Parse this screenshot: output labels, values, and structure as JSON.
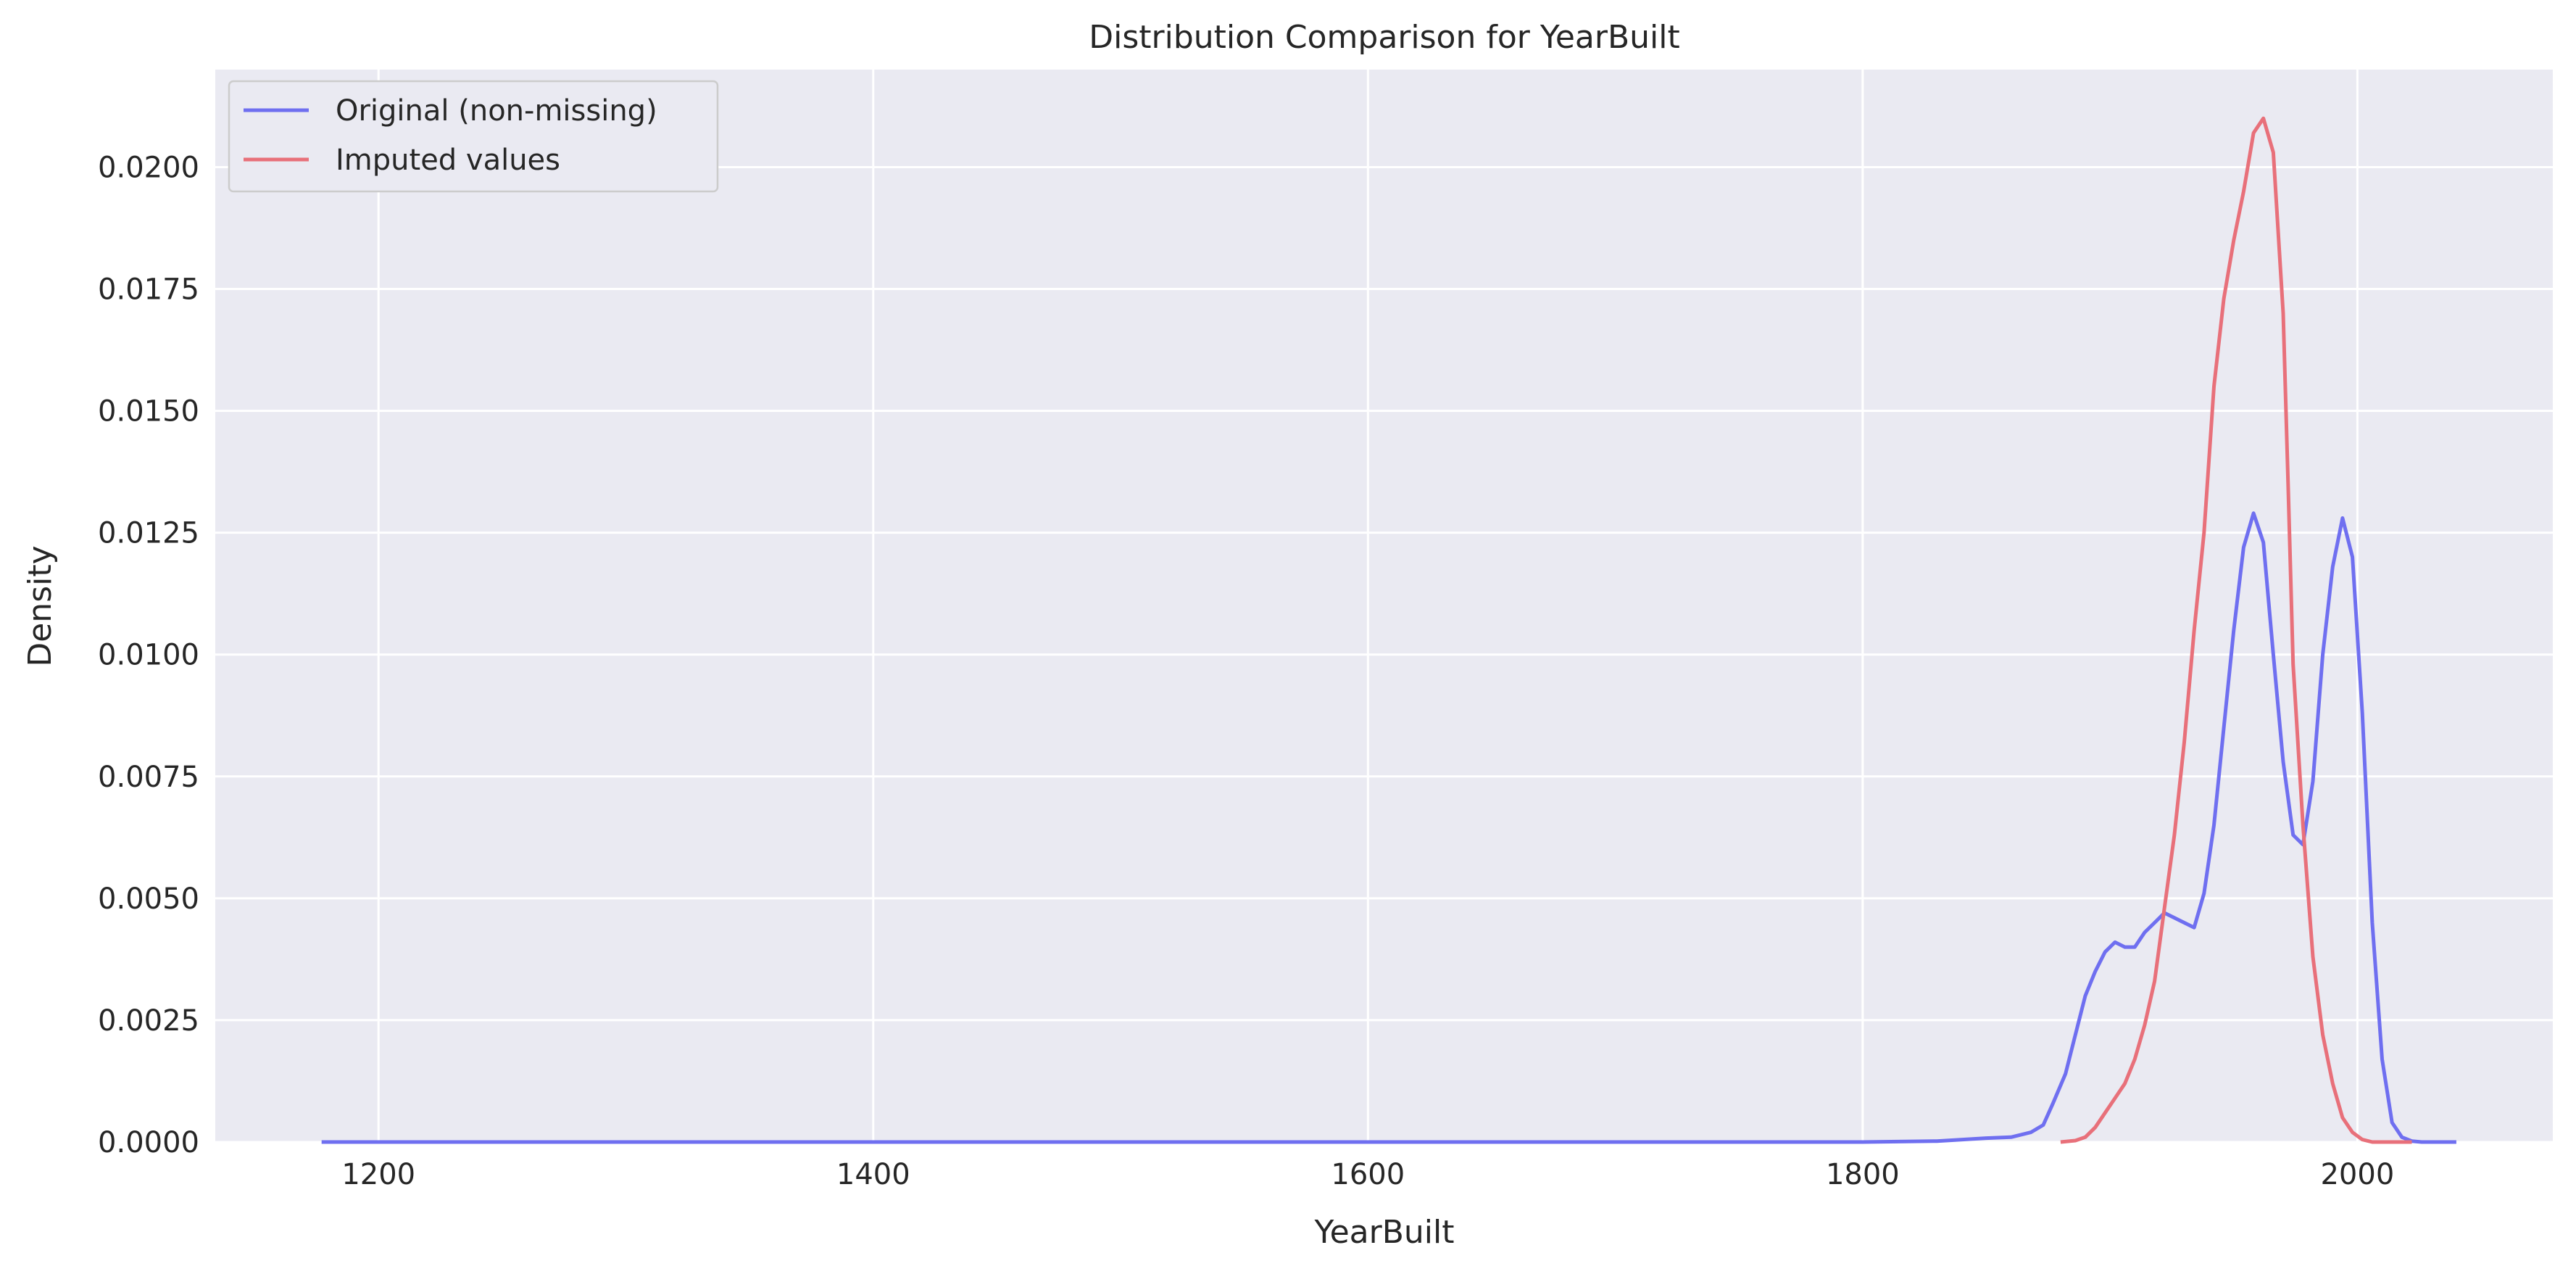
{
  "chart_data": {
    "type": "line",
    "title": "Distribution Comparison for YearBuilt",
    "xlabel": "YearBuilt",
    "ylabel": "Density",
    "xlim": [
      1134,
      2079
    ],
    "ylim": [
      0,
      0.022
    ],
    "xticks": [
      1200,
      1400,
      1600,
      1800,
      2000
    ],
    "yticks": [
      0.0,
      0.0025,
      0.005,
      0.0075,
      0.01,
      0.0125,
      0.015,
      0.0175,
      0.02
    ],
    "ytick_labels": [
      "0.0000",
      "0.0025",
      "0.0050",
      "0.0075",
      "0.0100",
      "0.0125",
      "0.0150",
      "0.0175",
      "0.0200"
    ],
    "xtick_labels": [
      "1200",
      "1400",
      "1600",
      "1800",
      "2000"
    ],
    "grid": true,
    "legend_position": "top-left",
    "background": "#eaeaf2",
    "series": [
      {
        "name": "Original (non-missing)",
        "color": "#6f6ff0",
        "x": [
          1177,
          1300,
          1500,
          1700,
          1800,
          1830,
          1850,
          1860,
          1868,
          1873,
          1877,
          1882,
          1886,
          1890,
          1894,
          1898,
          1902,
          1906,
          1910,
          1914,
          1918,
          1922,
          1926,
          1930,
          1934,
          1938,
          1942,
          1946,
          1950,
          1954,
          1958,
          1962,
          1966,
          1970,
          1974,
          1978,
          1982,
          1986,
          1990,
          1994,
          1998,
          2002,
          2006,
          2010,
          2014,
          2018,
          2022,
          2026,
          2030,
          2036,
          2040
        ],
        "y": [
          0.0,
          0.0,
          0.0,
          0.0,
          0.0,
          2e-05,
          8e-05,
          0.0001,
          0.0002,
          0.00035,
          0.0008,
          0.0014,
          0.0022,
          0.003,
          0.0035,
          0.0039,
          0.0041,
          0.004,
          0.004,
          0.0043,
          0.0045,
          0.0047,
          0.0046,
          0.0045,
          0.0044,
          0.0051,
          0.0065,
          0.0085,
          0.0105,
          0.0122,
          0.0129,
          0.0123,
          0.01,
          0.0078,
          0.0063,
          0.0061,
          0.0074,
          0.01,
          0.0118,
          0.0128,
          0.012,
          0.0088,
          0.0045,
          0.0017,
          0.0004,
          0.0001,
          2e-05,
          0.0,
          0.0,
          0.0,
          0.0
        ]
      },
      {
        "name": "Imputed values",
        "color": "#e8707a",
        "x": [
          1880,
          1886,
          1890,
          1894,
          1898,
          1902,
          1906,
          1910,
          1914,
          1918,
          1922,
          1926,
          1930,
          1934,
          1938,
          1942,
          1946,
          1950,
          1954,
          1958,
          1962,
          1966,
          1970,
          1972,
          1974,
          1978,
          1982,
          1986,
          1990,
          1994,
          1998,
          2002,
          2006,
          2010,
          2014,
          2018,
          2022
        ],
        "y": [
          0.0,
          3e-05,
          0.0001,
          0.0003,
          0.0006,
          0.0009,
          0.0012,
          0.0017,
          0.0024,
          0.0033,
          0.0048,
          0.0063,
          0.0082,
          0.0105,
          0.0125,
          0.0155,
          0.0173,
          0.0185,
          0.0195,
          0.0207,
          0.021,
          0.0203,
          0.017,
          0.0135,
          0.0098,
          0.0065,
          0.0038,
          0.0022,
          0.0012,
          0.0005,
          0.0002,
          5e-05,
          0.0,
          0.0,
          0.0,
          0.0,
          0.0
        ]
      }
    ]
  }
}
